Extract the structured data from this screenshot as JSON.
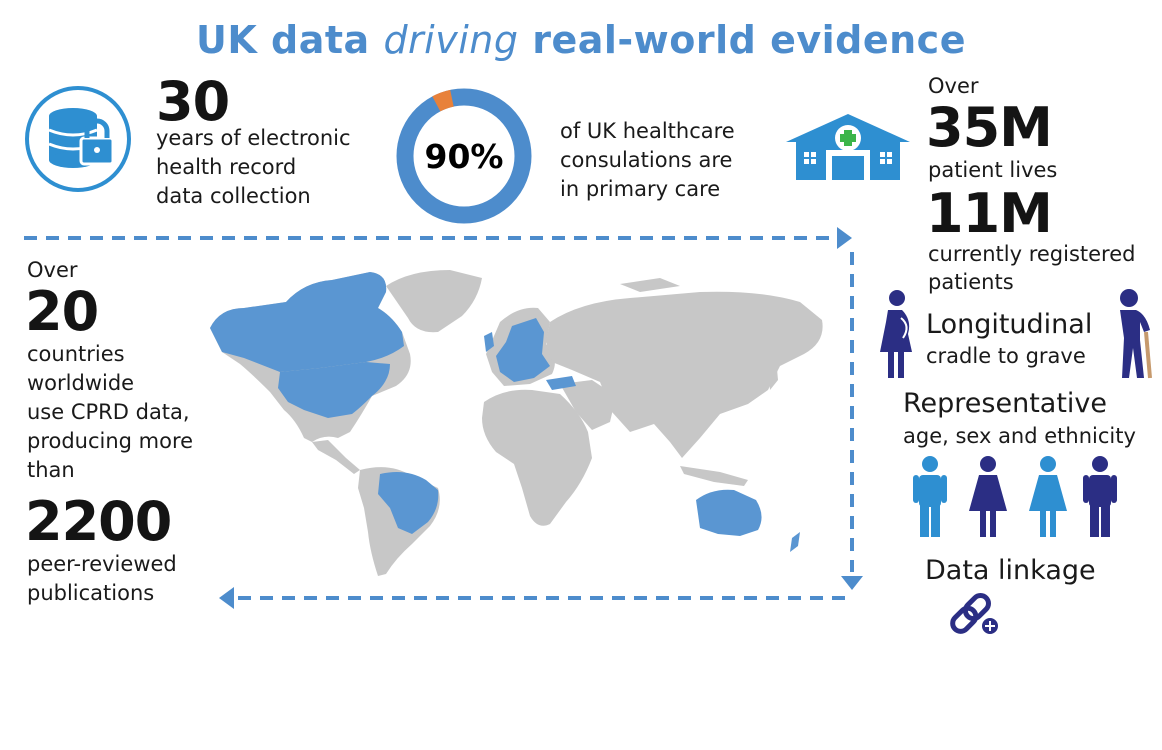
{
  "title": {
    "part1": "UK data ",
    "emphasis": "driving",
    "part2": " real-world evidence"
  },
  "stat_years": {
    "value": "30",
    "line1": "years of electronic",
    "line2": "health record",
    "line3": "data collection"
  },
  "stat_primary": {
    "percent": 90,
    "label": "90%",
    "line1": "of UK healthcare",
    "line2": "consulations are",
    "line3": "in primary care"
  },
  "stat_patients": {
    "over": "Over",
    "value": "35M",
    "label": "patient lives"
  },
  "stat_registered": {
    "value": "11M",
    "line1": "currently registered",
    "line2": "patients"
  },
  "longitudinal": {
    "heading": "Longitudinal",
    "sub": "cradle to grave"
  },
  "representative": {
    "heading": "Representative",
    "sub": "age, sex and ethnicity"
  },
  "linkage": {
    "heading": "Data linkage"
  },
  "stat_countries": {
    "over": "Over",
    "value": "20",
    "line1": "countries",
    "line2": "worldwide",
    "line3": "use CPRD data,",
    "line4": "producing more",
    "line5": "than"
  },
  "stat_publications": {
    "value": "2200",
    "line1": "peer-reviewed",
    "line2": "publications"
  },
  "colors": {
    "accent": "#4d8ccc",
    "bright_blue": "#2e8fd1",
    "navy": "#2b2e84",
    "orange": "#e8813a",
    "land_grey": "#c7c7c7",
    "highlight": "#5a96d2",
    "white": "#ffffff"
  }
}
